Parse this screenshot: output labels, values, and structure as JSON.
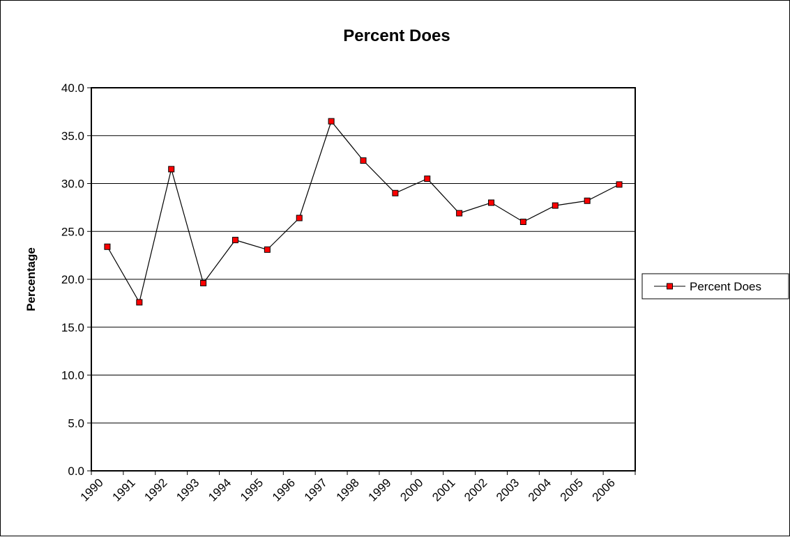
{
  "chart_data": {
    "type": "line",
    "title": "Percent Does",
    "xlabel": "",
    "ylabel": "Percentage",
    "categories": [
      "1990",
      "1991",
      "1992",
      "1993",
      "1994",
      "1995",
      "1996",
      "1997",
      "1998",
      "1999",
      "2000",
      "2001",
      "2002",
      "2003",
      "2004",
      "2005",
      "2006"
    ],
    "series": [
      {
        "name": "Percent Does",
        "values": [
          23.4,
          17.6,
          31.5,
          19.6,
          24.1,
          23.1,
          26.4,
          36.5,
          32.4,
          29.0,
          30.5,
          26.9,
          28.0,
          26.0,
          27.7,
          28.2,
          29.9
        ],
        "line_color": "#000000",
        "marker_color": "#ff0000"
      }
    ],
    "ylim": [
      0,
      40
    ],
    "yticks": [
      "0.0",
      "5.0",
      "10.0",
      "15.0",
      "20.0",
      "25.0",
      "30.0",
      "35.0",
      "40.0"
    ],
    "grid": true,
    "legend_position": "right"
  }
}
